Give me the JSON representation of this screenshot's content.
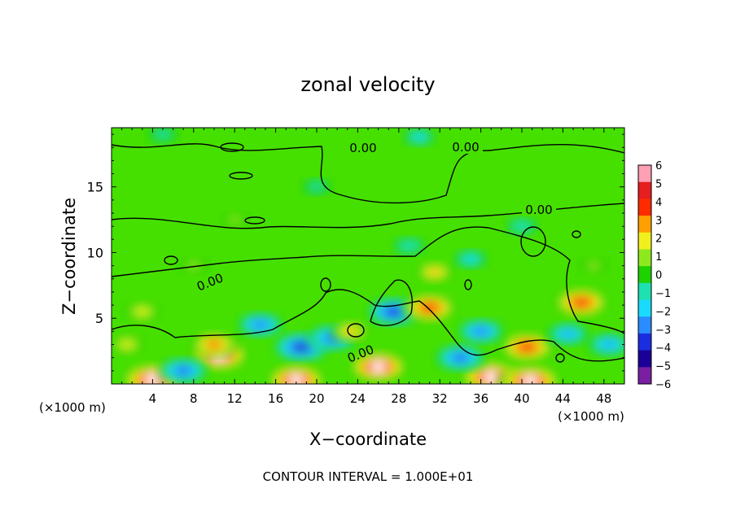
{
  "chart_data": {
    "type": "heatmap",
    "title": "zonal velocity",
    "xlabel": "X−coordinate",
    "ylabel": "Z−coordinate",
    "x_unit_left": "(×1000 m)",
    "x_unit_right": "(×1000 m)",
    "xlim": [
      0,
      50
    ],
    "ylim": [
      0,
      19.5
    ],
    "x_ticks": [
      4,
      8,
      12,
      16,
      20,
      24,
      28,
      32,
      36,
      40,
      44,
      48
    ],
    "y_ticks": [
      5,
      10,
      15
    ],
    "colorbar_ticks": [
      "6",
      "5",
      "4",
      "3",
      "2",
      "1",
      "0",
      "−1",
      "−2",
      "−3",
      "−4",
      "−5",
      "−6"
    ],
    "colorbar_range": [
      -6,
      6
    ],
    "colormap": [
      "#7a1fa2",
      "#1a0096",
      "#1a2ee0",
      "#2a8cff",
      "#19dbff",
      "#1fe0b0",
      "#1ed200",
      "#8ee81e",
      "#f0f01e",
      "#ffa000",
      "#ff2a00",
      "#e61e1e",
      "#ffa0b4"
    ],
    "contour_labels": [
      "0.00",
      "0.00",
      "0.00",
      "0.00",
      "0.00"
    ],
    "blobs": [
      {
        "x": 10.5,
        "z": 2.2,
        "v": 5.5
      },
      {
        "x": 10.0,
        "z": 3.0,
        "v": 3.8
      },
      {
        "x": 18.5,
        "z": 2.8,
        "v": -5.0
      },
      {
        "x": 18.0,
        "z": 0.3,
        "v": 5.5
      },
      {
        "x": 27.5,
        "z": 5.5,
        "v": -4.5
      },
      {
        "x": 26.0,
        "z": 1.3,
        "v": 5.5
      },
      {
        "x": 31.0,
        "z": 5.8,
        "v": 4.8
      },
      {
        "x": 31.5,
        "z": 8.5,
        "v": 2.5
      },
      {
        "x": 37.0,
        "z": 0.5,
        "v": 6.0
      },
      {
        "x": 40.5,
        "z": 2.8,
        "v": 5.0
      },
      {
        "x": 40.8,
        "z": 0.2,
        "v": 6.0
      },
      {
        "x": 45.8,
        "z": 6.2,
        "v": 5.0
      },
      {
        "x": 4.0,
        "z": 0.3,
        "v": 6.0
      },
      {
        "x": 14.5,
        "z": 4.5,
        "v": -3.5
      },
      {
        "x": 21.5,
        "z": 3.5,
        "v": -4.0
      },
      {
        "x": 36.0,
        "z": 4.0,
        "v": -3.5
      },
      {
        "x": 34.0,
        "z": 2.0,
        "v": -4.2
      },
      {
        "x": 7.0,
        "z": 1.0,
        "v": -4.0
      },
      {
        "x": 3.0,
        "z": 5.5,
        "v": 2.3
      },
      {
        "x": 1.5,
        "z": 3.0,
        "v": 2.2
      },
      {
        "x": 23.3,
        "z": 4.0,
        "v": 2.5
      },
      {
        "x": 44.5,
        "z": 3.8,
        "v": -3.0
      },
      {
        "x": 48.5,
        "z": 3.0,
        "v": -3.2
      },
      {
        "x": 29.0,
        "z": 10.5,
        "v": -1.5
      },
      {
        "x": 35.0,
        "z": 9.5,
        "v": -1.8
      },
      {
        "x": 40.0,
        "z": 12.0,
        "v": -1.5
      },
      {
        "x": 20.0,
        "z": 15.0,
        "v": -1.2
      },
      {
        "x": 30.0,
        "z": 18.8,
        "v": -1.6
      },
      {
        "x": 5.0,
        "z": 19.0,
        "v": -1.4
      },
      {
        "x": 12.0,
        "z": 12.5,
        "v": 0.8
      },
      {
        "x": 8.0,
        "z": 9.0,
        "v": 1.2
      },
      {
        "x": 47.0,
        "z": 9.0,
        "v": 1.0
      }
    ]
  }
}
